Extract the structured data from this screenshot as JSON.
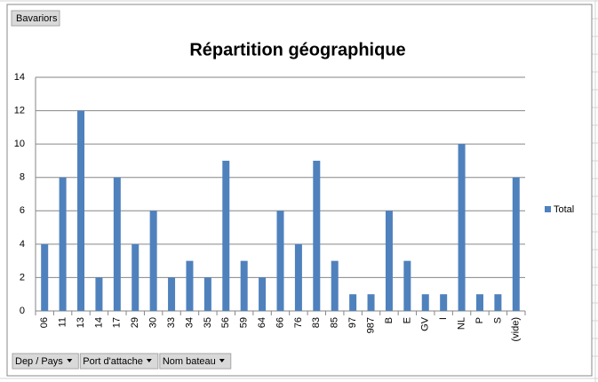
{
  "chart_data": {
    "type": "bar",
    "title": "Répartition géographique",
    "categories": [
      "06",
      "11",
      "13",
      "14",
      "17",
      "29",
      "30",
      "33",
      "34",
      "35",
      "56",
      "59",
      "64",
      "66",
      "76",
      "83",
      "85",
      "97",
      "987",
      "B",
      "E",
      "GV",
      "I",
      "NL",
      "P",
      "S",
      "(vide)"
    ],
    "series": [
      {
        "name": "Total",
        "color": "#4f81bd",
        "values": [
          4,
          8,
          12,
          2,
          8,
          4,
          6,
          2,
          3,
          2,
          9,
          3,
          2,
          6,
          4,
          9,
          3,
          1,
          1,
          6,
          3,
          1,
          1,
          10,
          1,
          1,
          8
        ]
      }
    ],
    "ylim": [
      0,
      14
    ],
    "yticks": [
      0,
      2,
      4,
      6,
      8,
      10,
      12,
      14
    ],
    "grid": true,
    "legend": "right"
  },
  "buttons": {
    "report_filter": "Bavariors",
    "axis_fields": [
      "Dep / Pays",
      "Port d'attache",
      "Nom bateau"
    ]
  }
}
